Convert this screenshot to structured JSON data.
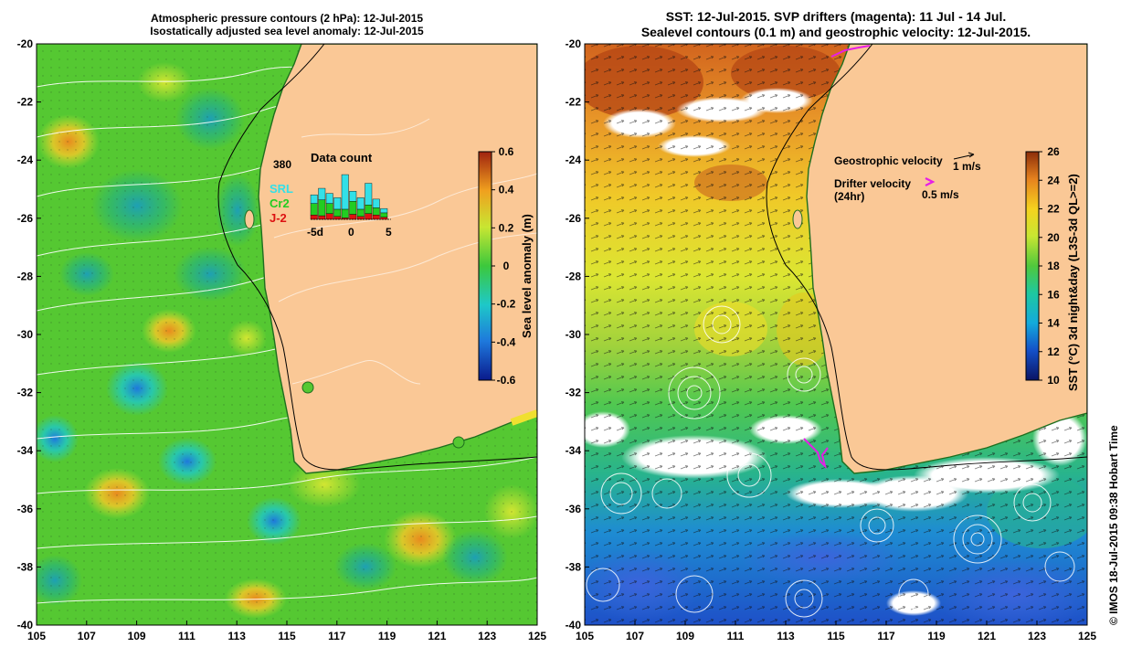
{
  "left_panel": {
    "title_line1": "Atmospheric pressure contours (2 hPa): 12-Jul-2015",
    "title_line2": "Isostatically adjusted sea level anomaly: 12-Jul-2015",
    "colorbar": {
      "label": "Sea level anomaly (m)",
      "range": [
        -0.6,
        0.6
      ],
      "ticks": [
        "0.6",
        "0.4",
        "0.2",
        "0",
        "-0.2",
        "-0.4",
        "-0.6"
      ]
    },
    "data_count": {
      "title": "Data count",
      "max_label": "380",
      "legend": [
        {
          "label": "SRL",
          "color": "#33e0e8"
        },
        {
          "label": "Cr2",
          "color": "#22cc22"
        },
        {
          "label": "J-2",
          "color": "#dd1111"
        }
      ],
      "x_ticks": [
        "-5d",
        "0",
        "5"
      ],
      "bars": [
        {
          "day": -5,
          "J-2": 30,
          "Cr2": 80,
          "SRL": 60
        },
        {
          "day": -4,
          "J-2": 25,
          "Cr2": 110,
          "SRL": 80
        },
        {
          "day": -3,
          "J-2": 40,
          "Cr2": 70,
          "SRL": 70
        },
        {
          "day": -2,
          "J-2": 20,
          "Cr2": 50,
          "SRL": 80
        },
        {
          "day": -1,
          "J-2": 10,
          "Cr2": 60,
          "SRL": 240
        },
        {
          "day": 0,
          "J-2": 35,
          "Cr2": 90,
          "SRL": 70
        },
        {
          "day": 1,
          "J-2": 20,
          "Cr2": 50,
          "SRL": 80
        },
        {
          "day": 2,
          "J-2": 40,
          "Cr2": 60,
          "SRL": 150
        },
        {
          "day": 3,
          "J-2": 30,
          "Cr2": 50,
          "SRL": 60
        },
        {
          "day": 4,
          "J-2": 15,
          "Cr2": 30,
          "SRL": 30
        }
      ]
    }
  },
  "right_panel": {
    "title_line1": "SST: 12-Jul-2015. SVP drifters (magenta): 11 Jul - 14 Jul.",
    "title_line2": "Sealevel contours (0.1 m) and geostrophic velocity: 12-Jul-2015.",
    "legend": {
      "geostrophic_label": "Geostrophic velocity",
      "geostrophic_speed": "1 m/s",
      "drifter_label_line1": "Drifter velocity",
      "drifter_label_line2": "(24hr)",
      "drifter_speed": "0.5 m/s"
    },
    "colorbar": {
      "label": "SST (°C) 3d night&day (L3S-3d QL>=2)",
      "range": [
        10,
        26
      ],
      "ticks": [
        "26",
        "24",
        "22",
        "20",
        "18",
        "16",
        "14",
        "12",
        "10"
      ]
    }
  },
  "axes": {
    "lon_range": [
      105,
      125
    ],
    "lat_range": [
      -40,
      -20
    ],
    "x_ticks": [
      "105",
      "107",
      "109",
      "111",
      "113",
      "115",
      "117",
      "119",
      "121",
      "123",
      "125"
    ],
    "y_ticks": [
      "-20",
      "-22",
      "-24",
      "-26",
      "-28",
      "-30",
      "-32",
      "-34",
      "-36",
      "-38",
      "-40"
    ]
  },
  "copyright": "© IMOS 18-Jul-2015 09:38 Hobart Time",
  "colors": {
    "land": "#fac896",
    "coast": "#1e6e1e",
    "sla_base": "#55c832",
    "drifter": "#e61ee6"
  }
}
